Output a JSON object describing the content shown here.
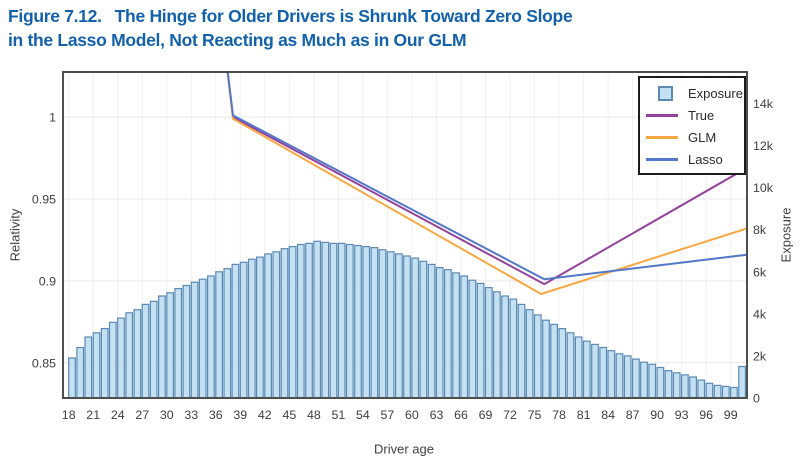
{
  "figure_title": {
    "prefix": "Figure 7.12.",
    "line1": "The Hinge for Older Drivers is Shrunk Toward Zero Slope",
    "line2": "in the Lasso Model, Not Reacting as Much as in Our GLM",
    "color": "#1361ab"
  },
  "chart_data": {
    "type": "bar+line combo (dual axis)",
    "x_axis": {
      "label": "Driver age",
      "tick_values": [
        18,
        21,
        24,
        27,
        30,
        33,
        36,
        39,
        42,
        45,
        48,
        51,
        54,
        57,
        60,
        63,
        66,
        69,
        72,
        75,
        78,
        81,
        84,
        87,
        90,
        93,
        96,
        99
      ],
      "tick_labels": [
        "18",
        "21",
        "24",
        "27",
        "30",
        "33",
        "36",
        "39",
        "42",
        "45",
        "48",
        "51",
        "54",
        "57",
        "60",
        "63",
        "66",
        "69",
        "72",
        "75",
        "78",
        "81",
        "84",
        "87",
        "90",
        "93",
        "96",
        "99"
      ],
      "range": [
        17.3,
        101.0
      ]
    },
    "y_left": {
      "label": "Relativity",
      "tick_values": [
        0.85,
        0.9,
        0.95,
        1
      ],
      "tick_labels": [
        "0.85",
        "0.9",
        "0.95",
        "1"
      ],
      "range": [
        0.8285,
        1.0275
      ]
    },
    "y_right": {
      "label": "Exposure",
      "tick_values": [
        0,
        2000,
        4000,
        6000,
        8000,
        10000,
        12000,
        14000
      ],
      "tick_labels": [
        "0",
        "2k",
        "4k",
        "6k",
        "8k",
        "10k",
        "12k",
        "14k"
      ],
      "range": [
        0,
        15500
      ]
    },
    "bars": {
      "name": "Exposure",
      "age_min": 18,
      "age_max": 100,
      "fill": "#c3e1f2",
      "stroke": "#5b89b4",
      "values": [
        1900,
        2400,
        2900,
        3100,
        3300,
        3600,
        3800,
        4050,
        4200,
        4450,
        4600,
        4850,
        5000,
        5200,
        5350,
        5500,
        5650,
        5800,
        6000,
        6150,
        6350,
        6450,
        6600,
        6700,
        6850,
        6950,
        7100,
        7200,
        7300,
        7350,
        7450,
        7400,
        7350,
        7350,
        7300,
        7250,
        7200,
        7150,
        7050,
        6950,
        6850,
        6750,
        6650,
        6500,
        6350,
        6200,
        6100,
        5950,
        5800,
        5600,
        5450,
        5250,
        5050,
        4850,
        4700,
        4450,
        4200,
        3950,
        3700,
        3500,
        3300,
        3100,
        2900,
        2700,
        2550,
        2400,
        2250,
        2100,
        2000,
        1850,
        1700,
        1600,
        1450,
        1300,
        1200,
        1100,
        1000,
        850,
        700,
        600,
        550,
        500,
        1500
      ]
    },
    "series": [
      {
        "name": "True",
        "color": "#94429b",
        "points": [
          [
            36.9,
            1.05
          ],
          [
            38.1,
            1.0
          ],
          [
            76.2,
            0.898
          ],
          [
            101,
            0.969
          ]
        ]
      },
      {
        "name": "GLM",
        "color": "#f7a843",
        "points": [
          [
            36.9,
            1.05
          ],
          [
            38.1,
            0.999
          ],
          [
            75.8,
            0.892
          ],
          [
            101,
            0.932
          ]
        ]
      },
      {
        "name": "Lasso",
        "color": "#5377c9",
        "points": [
          [
            36.9,
            1.05
          ],
          [
            38.1,
            1.001
          ],
          [
            76.2,
            0.901
          ],
          [
            101,
            0.916
          ]
        ]
      }
    ],
    "legend": {
      "items": [
        {
          "label": "Exposure",
          "type": "square"
        },
        {
          "label": "True",
          "type": "line"
        },
        {
          "label": "GLM",
          "type": "line"
        },
        {
          "label": "Lasso",
          "type": "line"
        }
      ]
    },
    "grid": {
      "horizontal": true,
      "vertical": true
    },
    "plot_border_color": "#4d4d4d"
  }
}
